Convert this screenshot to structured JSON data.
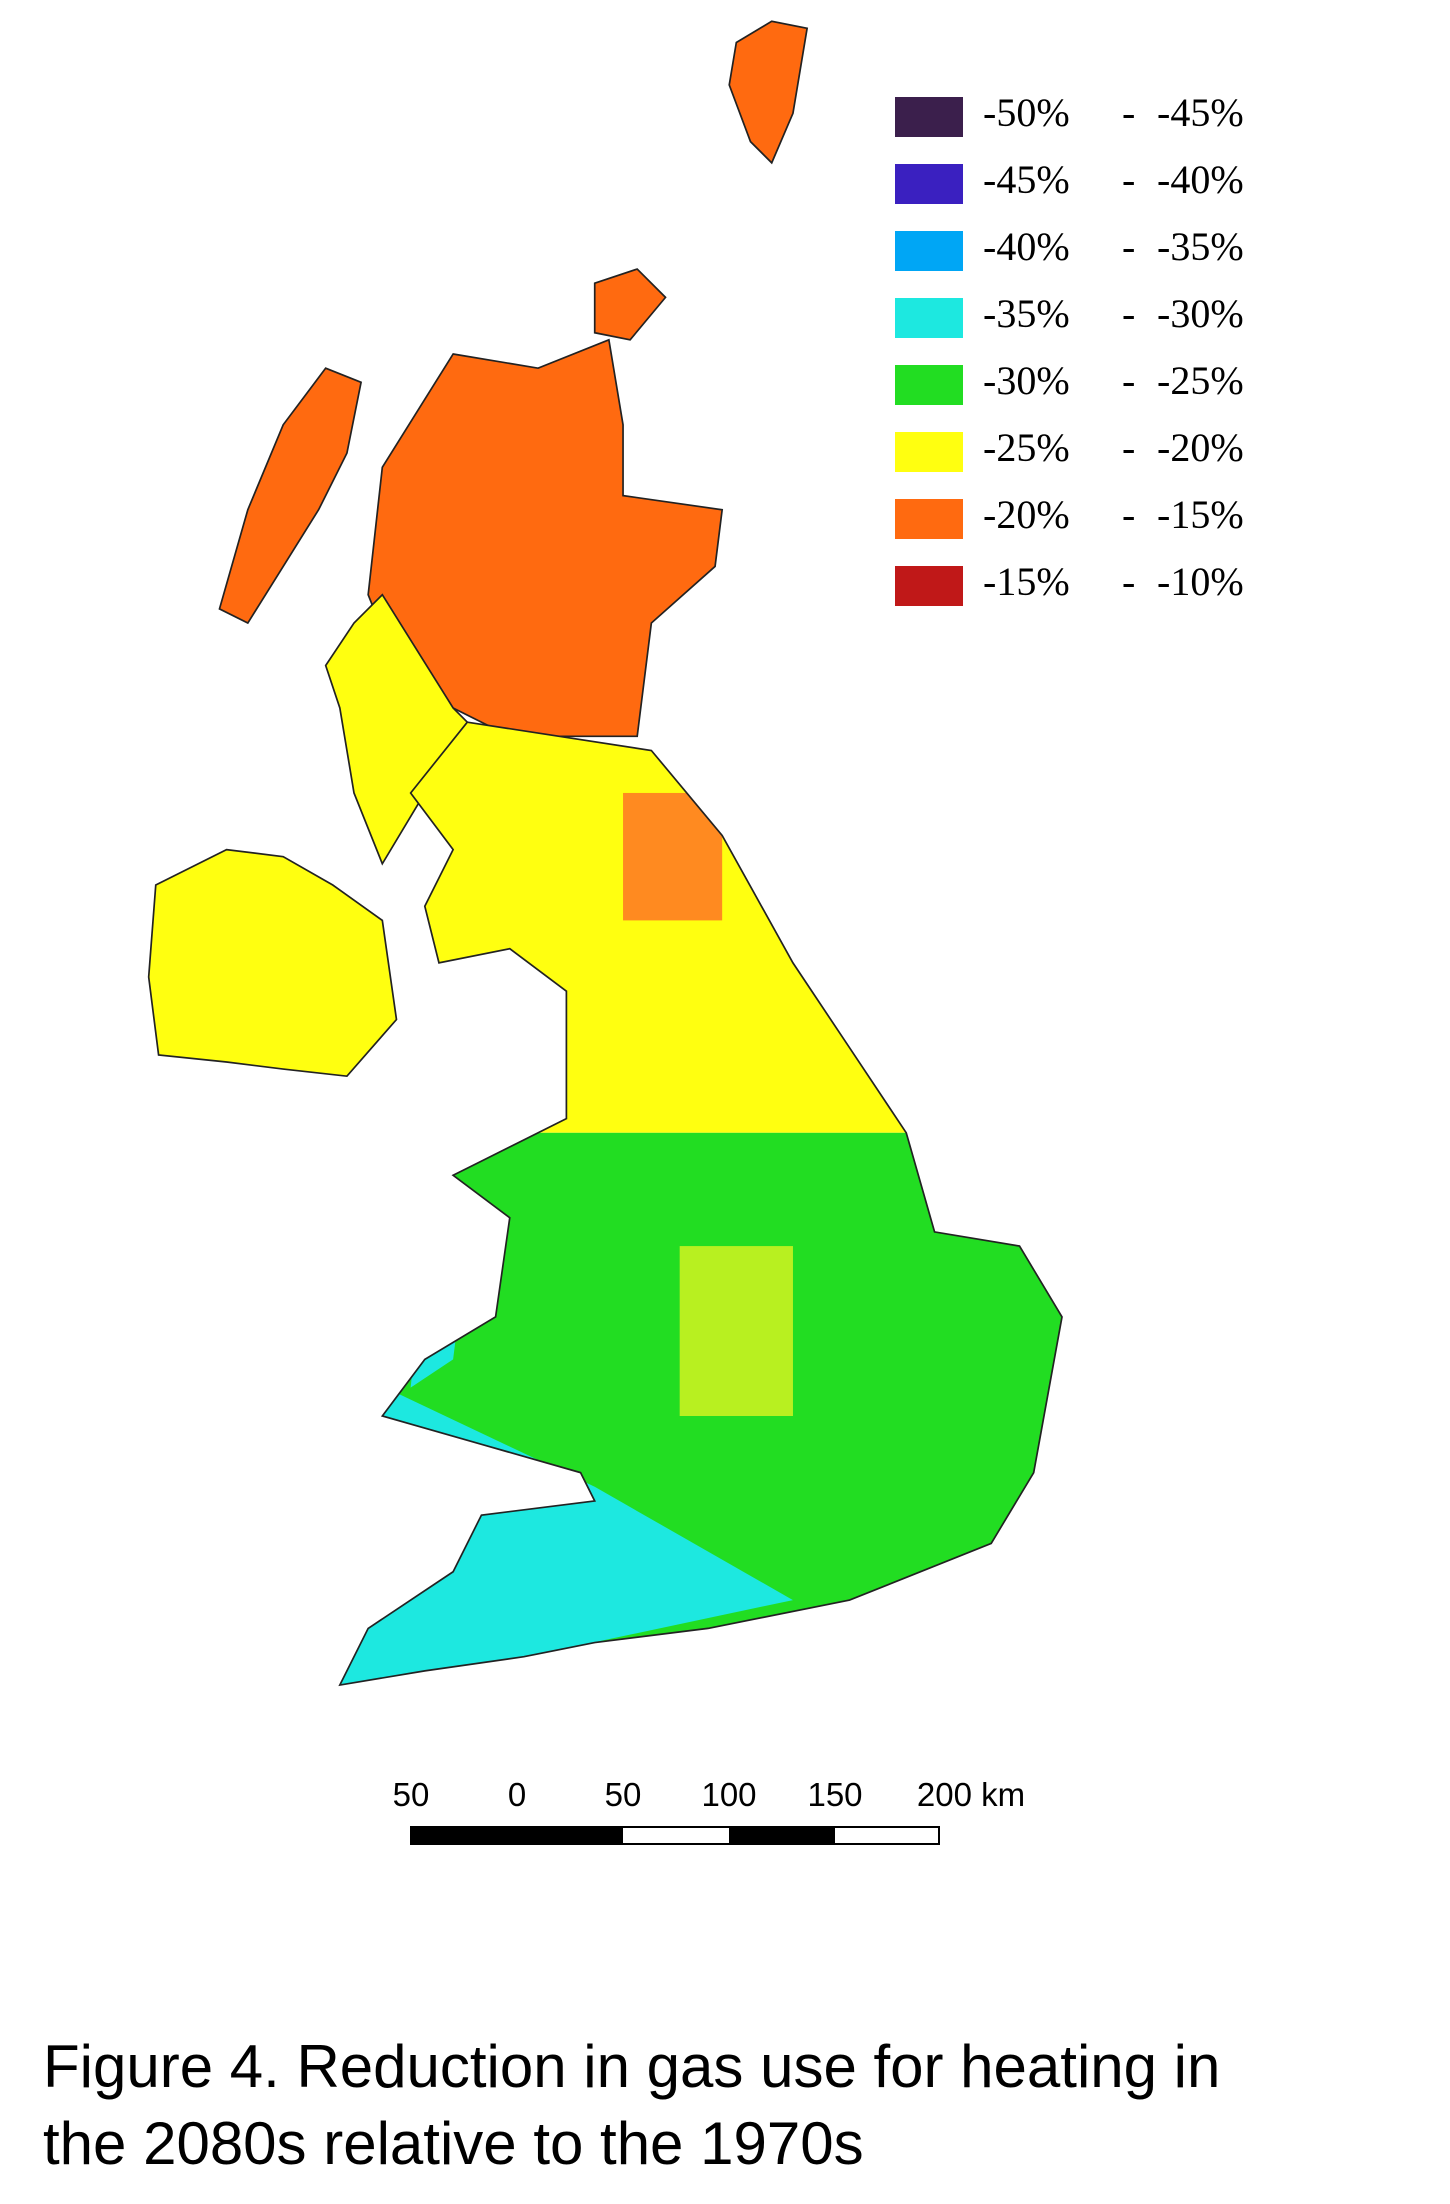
{
  "legend": {
    "items": [
      {
        "from": "-50%",
        "to": "-45%",
        "color": "#3b1f4c"
      },
      {
        "from": "-45%",
        "to": "-40%",
        "color": "#3a20c0"
      },
      {
        "from": "-40%",
        "to": "-35%",
        "color": "#00a6f5"
      },
      {
        "from": "-35%",
        "to": "-30%",
        "color": "#1de8e0"
      },
      {
        "from": "-30%",
        "to": "-25%",
        "color": "#22dd22"
      },
      {
        "from": "-25%",
        "to": "-20%",
        "color": "#ffff10"
      },
      {
        "from": "-20%",
        "to": "-15%",
        "color": "#ff6a10"
      },
      {
        "from": "-15%",
        "to": "-10%",
        "color": "#c01818"
      }
    ]
  },
  "scale_bar": {
    "labels": [
      "50",
      "0",
      "50",
      "100",
      "150",
      "200 km"
    ]
  },
  "caption": {
    "lines": [
      "Figure 4. Reduction in gas use for heating in",
      "the 2080s relative to the 1970s"
    ]
  }
}
